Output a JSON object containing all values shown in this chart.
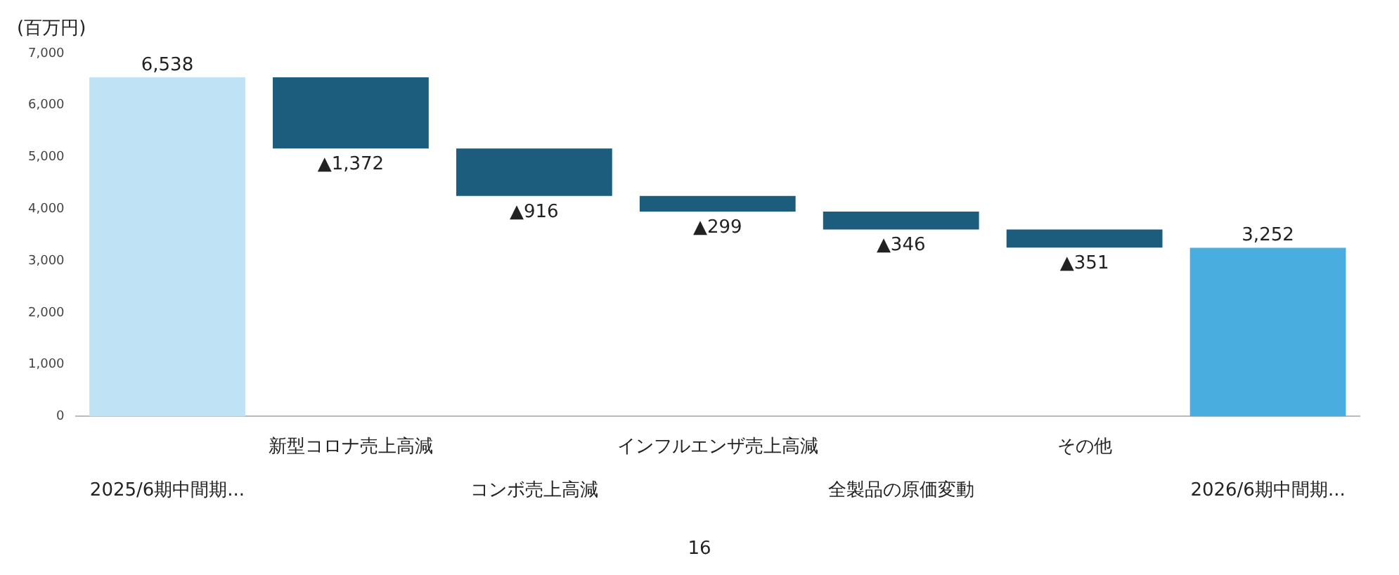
{
  "chart_data": {
    "type": "bar",
    "ylabel": "(百万円)",
    "categories": [
      "2025/6期中間期...",
      "新型コロナ売上高減",
      "コンボ売上高減",
      "インフルエンザ売上高減",
      "全製品の原価変動",
      "その他",
      "2026/6期中間期..."
    ],
    "values": [
      6538,
      -1372,
      -916,
      -299,
      -346,
      -351,
      3252
    ],
    "base": [
      0,
      6538,
      5166,
      4250,
      3951,
      3605,
      0
    ],
    "colors": [
      "#bfe3f4",
      "#1c5d7e",
      "#1c5d7e",
      "#1c5d7e",
      "#1c5d7e",
      "#1c5d7e",
      "#49addf"
    ],
    "value_labels": [
      "6,538",
      "▲1,372",
      "▲916",
      "▲299",
      "▲346",
      "▲351",
      "3,252"
    ],
    "ylim": [
      0,
      7000
    ],
    "yticks": [
      {
        "value": 0,
        "label": "0"
      },
      {
        "value": 1000,
        "label": "1,000"
      },
      {
        "value": 2000,
        "label": "2,000"
      },
      {
        "value": 3000,
        "label": "3,000"
      },
      {
        "value": 4000,
        "label": "4,000"
      },
      {
        "value": 5000,
        "label": "5,000"
      },
      {
        "value": 6000,
        "label": "6,000"
      },
      {
        "value": 7000,
        "label": "7,000"
      }
    ],
    "grid": false,
    "legend": false,
    "annotations": [
      "16"
    ]
  }
}
